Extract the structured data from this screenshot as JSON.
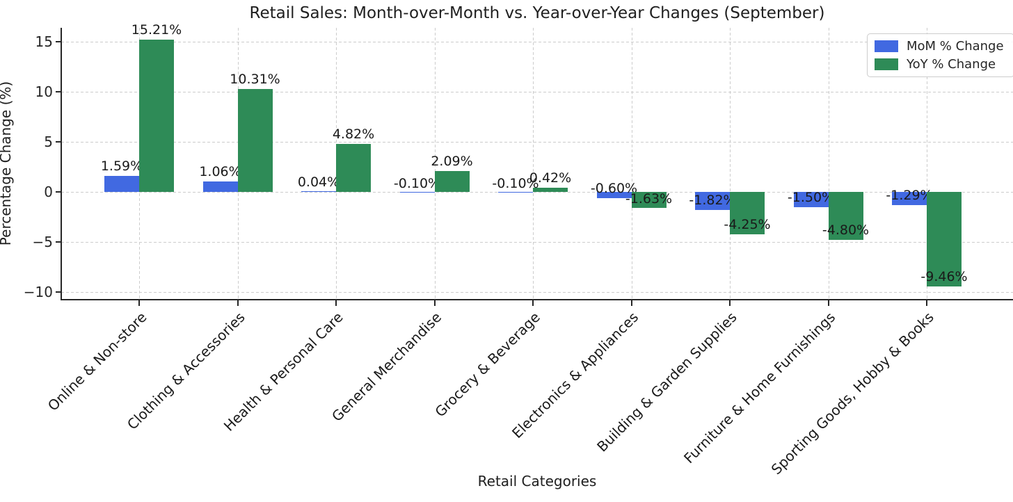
{
  "page": {
    "background_color": "#ffffff",
    "text_color": "#262626"
  },
  "chart_data": {
    "type": "bar",
    "title": "Retail Sales: Month-over-Month vs. Year-over-Year Changes (September)",
    "xlabel": "Retail Categories",
    "ylabel": "Percentage Change (%)",
    "categories": [
      "Online & Non-store",
      "Clothing & Accessories",
      "Health & Personal Care",
      "General Merchandise",
      "Grocery & Beverage",
      "Electronics & Appliances",
      "Building & Garden Supplies",
      "Furniture & Home Furnishings",
      "Sporting Goods, Hobby & Books"
    ],
    "series": [
      {
        "name": "MoM % Change",
        "color": "#4169E1",
        "values": [
          1.59,
          1.06,
          0.04,
          -0.1,
          -0.1,
          -0.6,
          -1.82,
          -1.5,
          -1.29
        ],
        "bar_labels": [
          "1.59%",
          "1.06%",
          "0.04%",
          "-0.10%",
          "-0.10%",
          "-0.60%",
          "-1.82%",
          "-1.50%",
          "-1.29%"
        ]
      },
      {
        "name": "YoY % Change",
        "color": "#2E8B57",
        "values": [
          15.21,
          10.31,
          4.82,
          2.09,
          0.42,
          -1.63,
          -4.25,
          -4.8,
          -9.46
        ],
        "bar_labels": [
          "15.21%",
          "10.31%",
          "4.82%",
          "2.09%",
          "0.42%",
          "-1.63%",
          "-4.25%",
          "-4.80%",
          "-9.46%"
        ]
      }
    ],
    "yticks": [
      {
        "value": -10,
        "label": "−10"
      },
      {
        "value": -5,
        "label": "−5"
      },
      {
        "value": 0,
        "label": "0"
      },
      {
        "value": 5,
        "label": "5"
      },
      {
        "value": 10,
        "label": "10"
      },
      {
        "value": 15,
        "label": "15"
      }
    ],
    "ylim": [
      -10.7,
      16.4
    ],
    "grid": true,
    "grid_color": "#cccccc",
    "legend_position": "upper right"
  }
}
